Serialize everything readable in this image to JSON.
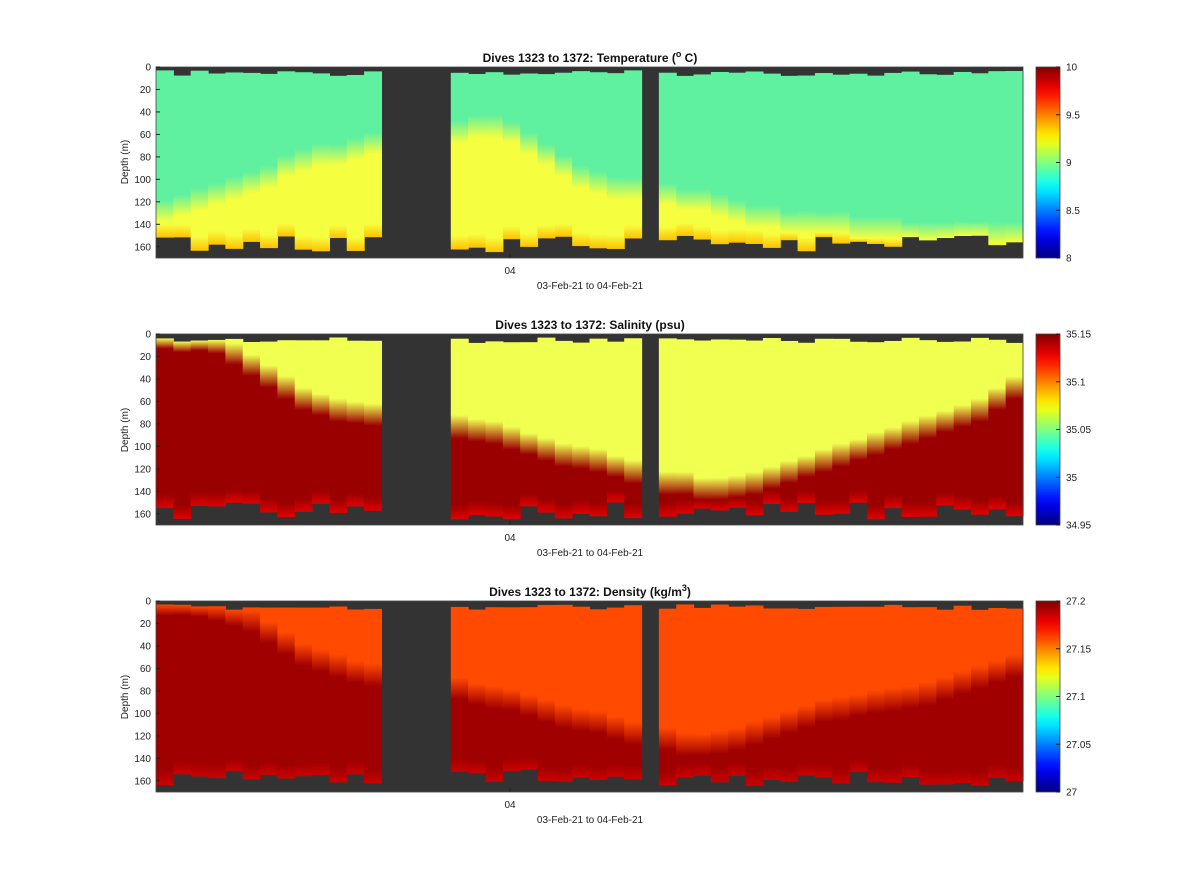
{
  "chart_data": [
    {
      "type": "heatmap",
      "title_main": "Dives 1323 to 1372: Temperature (",
      "title_sup": "o",
      "title_end": " C)",
      "ylabel": "Depth (m)",
      "xlabel": "03-Feb-21 to 04-Feb-21",
      "x_tick": "04",
      "y_ticks": [
        "0",
        "20",
        "40",
        "60",
        "80",
        "100",
        "120",
        "140",
        "160"
      ],
      "ylim": [
        0,
        170
      ],
      "colorbar": {
        "ticks": [
          "10",
          "9.5",
          "9",
          "8.5",
          "8"
        ],
        "range": [
          8,
          10
        ]
      },
      "colors": {
        "upper": "#5ff0a0",
        "lower": "#f5ff40",
        "deep": "#ffc000"
      },
      "mixing_depth": [
        130,
        125,
        120,
        115,
        110,
        105,
        100,
        90,
        85,
        80,
        80,
        75,
        70,
        70,
        65,
        65,
        60,
        60,
        55,
        55,
        60,
        70,
        80,
        90,
        100,
        105,
        110,
        110,
        115,
        115,
        120,
        120,
        125,
        130,
        135,
        135,
        140,
        140,
        140,
        140,
        145,
        145,
        145,
        150,
        150,
        150,
        150,
        150,
        150,
        150
      ]
    },
    {
      "type": "heatmap",
      "title_main": "Dives 1323 to 1372: Salinity (psu)",
      "title_sup": "",
      "title_end": "",
      "ylabel": "Depth (m)",
      "xlabel": "03-Feb-21 to 04-Feb-21",
      "x_tick": "04",
      "y_ticks": [
        "0",
        "20",
        "40",
        "60",
        "80",
        "100",
        "120",
        "140",
        "160"
      ],
      "ylim": [
        0,
        170
      ],
      "colorbar": {
        "ticks": [
          "35.15",
          "35.1",
          "35.05",
          "35",
          "34.95"
        ],
        "range": [
          34.95,
          35.15
        ]
      },
      "colors": {
        "upper": "#f0ff50",
        "lower": "#9b0000",
        "deep": "#e00000"
      },
      "mixing_depth": [
        5,
        5,
        5,
        10,
        20,
        30,
        40,
        50,
        60,
        65,
        70,
        72,
        74,
        75,
        78,
        80,
        82,
        85,
        88,
        90,
        95,
        100,
        105,
        110,
        112,
        115,
        120,
        125,
        130,
        135,
        135,
        140,
        140,
        138,
        135,
        130,
        125,
        120,
        115,
        110,
        105,
        100,
        95,
        90,
        85,
        80,
        75,
        70,
        60,
        50
      ]
    },
    {
      "type": "heatmap",
      "title_main": "Dives 1323 to 1372: Density (kg/m",
      "title_sup": "3",
      "title_end": ")",
      "ylabel": "Depth (m)",
      "xlabel": "03-Feb-21 to 04-Feb-21",
      "x_tick": "04",
      "y_ticks": [
        "0",
        "20",
        "40",
        "60",
        "80",
        "100",
        "120",
        "140",
        "160"
      ],
      "ylim": [
        0,
        170
      ],
      "colorbar": {
        "ticks": [
          "27.2",
          "27.15",
          "27.1",
          "27.05",
          "27"
        ],
        "range": [
          27,
          27.2
        ]
      },
      "colors": {
        "upper": "#ff4a00",
        "lower": "#a00000",
        "deep": "#cc0000"
      },
      "mixing_depth": [
        5,
        5,
        5,
        10,
        15,
        20,
        30,
        40,
        50,
        55,
        60,
        65,
        68,
        70,
        72,
        75,
        78,
        80,
        85,
        88,
        90,
        95,
        100,
        105,
        108,
        110,
        115,
        120,
        125,
        125,
        130,
        130,
        128,
        125,
        120,
        115,
        110,
        105,
        100,
        98,
        95,
        92,
        90,
        88,
        85,
        80,
        75,
        70,
        65,
        60
      ]
    }
  ]
}
